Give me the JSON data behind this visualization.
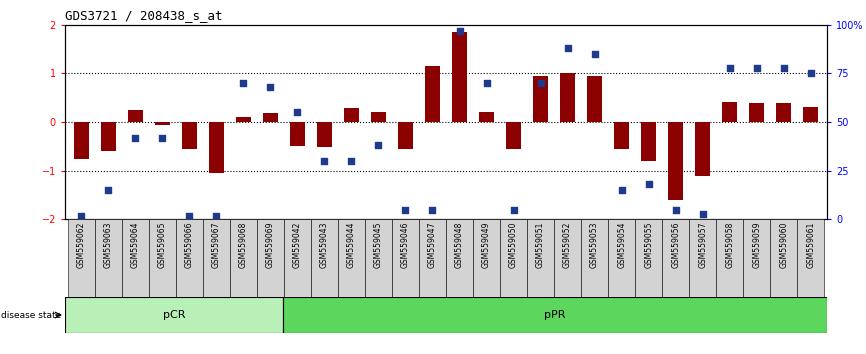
{
  "title": "GDS3721 / 208438_s_at",
  "samples": [
    "GSM559062",
    "GSM559063",
    "GSM559064",
    "GSM559065",
    "GSM559066",
    "GSM559067",
    "GSM559068",
    "GSM559069",
    "GSM559042",
    "GSM559043",
    "GSM559044",
    "GSM559045",
    "GSM559046",
    "GSM559047",
    "GSM559048",
    "GSM559049",
    "GSM559050",
    "GSM559051",
    "GSM559052",
    "GSM559053",
    "GSM559054",
    "GSM559055",
    "GSM559056",
    "GSM559057",
    "GSM559058",
    "GSM559059",
    "GSM559060",
    "GSM559061"
  ],
  "transformed_count": [
    -0.75,
    -0.6,
    0.25,
    -0.05,
    -0.55,
    -1.05,
    0.1,
    0.18,
    -0.5,
    -0.52,
    0.3,
    0.2,
    -0.55,
    1.15,
    1.85,
    0.2,
    -0.55,
    0.95,
    1.0,
    0.95,
    -0.55,
    -0.8,
    -1.6,
    -1.1,
    0.42,
    0.4,
    0.4,
    0.32
  ],
  "percentile_rank": [
    2,
    15,
    42,
    42,
    2,
    2,
    70,
    68,
    55,
    30,
    30,
    38,
    5,
    5,
    97,
    70,
    5,
    70,
    88,
    85,
    15,
    18,
    5,
    3,
    78,
    78,
    78,
    75
  ],
  "pCR_count": 8,
  "pPR_count": 20,
  "bar_color": "#8B0000",
  "dot_color": "#1E3A8A",
  "pCR_color": "#B8F0B8",
  "pPR_color": "#5CD65C",
  "label_bg_color": "#D3D3D3",
  "ylim_left": [
    -2,
    2
  ],
  "ylim_right": [
    0,
    100
  ],
  "yticks_left": [
    -2,
    -1,
    0,
    1,
    2
  ],
  "yticks_right": [
    0,
    25,
    50,
    75,
    100
  ],
  "hlines": [
    -1.0,
    0.0,
    1.0
  ],
  "background_color": "#ffffff",
  "figsize": [
    8.66,
    3.54
  ],
  "dpi": 100
}
